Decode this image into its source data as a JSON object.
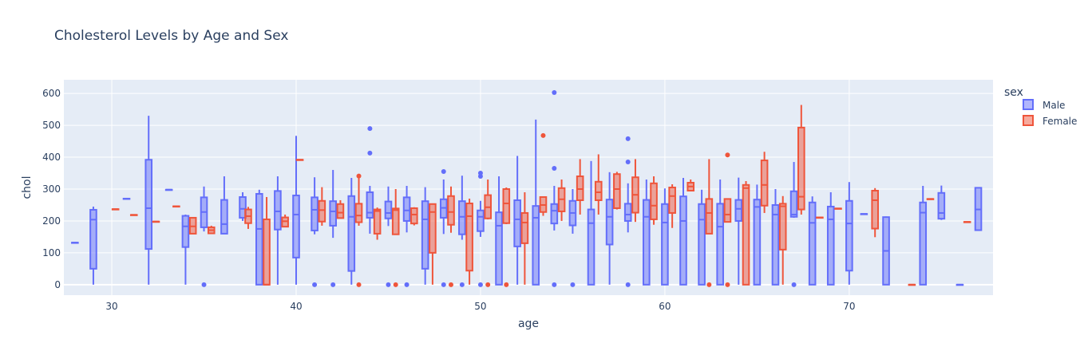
{
  "chart_data": {
    "type": "box",
    "title": "Cholesterol Levels by Age and Sex",
    "xlabel": "age",
    "ylabel": "chol",
    "xlim": [
      27.4,
      77.8
    ],
    "ylim": [
      -33,
      643
    ],
    "x_ticks": [
      30,
      40,
      50,
      60,
      70
    ],
    "y_ticks": [
      0,
      100,
      200,
      300,
      400,
      500,
      600
    ],
    "legend_title": "sex",
    "legend_position": "right",
    "grid": true,
    "series": [
      {
        "name": "Male",
        "color": "#636efa",
        "fill": "rgba(99,110,250,0.5)",
        "boxes": [
          {
            "x": 28,
            "min": 132,
            "q1": 132,
            "median": 132,
            "q3": 132,
            "max": 132,
            "outliers": []
          },
          {
            "x": 29,
            "min": 0,
            "q1": 50,
            "median": 204,
            "q3": 235,
            "max": 245,
            "outliers": []
          },
          {
            "x": 30.8,
            "min": 270,
            "q1": 270,
            "median": 270,
            "q3": 270,
            "max": 270,
            "outliers": []
          },
          {
            "x": 32,
            "min": 0,
            "q1": 112,
            "median": 240,
            "q3": 392,
            "max": 530,
            "outliers": []
          },
          {
            "x": 33.1,
            "min": 298,
            "q1": 298,
            "median": 298,
            "q3": 298,
            "max": 298,
            "outliers": []
          },
          {
            "x": 34,
            "min": 0,
            "q1": 118,
            "median": 183,
            "q3": 216,
            "max": 220,
            "outliers": []
          },
          {
            "x": 35,
            "min": 167,
            "q1": 180,
            "median": 228,
            "q3": 274,
            "max": 308,
            "outliers": [
              0
            ]
          },
          {
            "x": 36.1,
            "min": 160,
            "q1": 160,
            "median": 190,
            "q3": 266,
            "max": 340,
            "outliers": []
          },
          {
            "x": 37.1,
            "min": 200,
            "q1": 210,
            "median": 238,
            "q3": 275,
            "max": 290,
            "outliers": []
          },
          {
            "x": 38,
            "min": 0,
            "q1": 0,
            "median": 175,
            "q3": 285,
            "max": 298,
            "outliers": []
          },
          {
            "x": 39,
            "min": 0,
            "q1": 173,
            "median": 230,
            "q3": 294,
            "max": 340,
            "outliers": []
          },
          {
            "x": 40,
            "min": 0,
            "q1": 85,
            "median": 220,
            "q3": 280,
            "max": 467,
            "outliers": []
          },
          {
            "x": 41,
            "min": 158,
            "q1": 170,
            "median": 235,
            "q3": 274,
            "max": 337,
            "outliers": [
              0
            ]
          },
          {
            "x": 42,
            "min": 147,
            "q1": 185,
            "median": 230,
            "q3": 262,
            "max": 360,
            "outliers": [
              0
            ]
          },
          {
            "x": 43,
            "min": 0,
            "q1": 43,
            "median": 213,
            "q3": 278,
            "max": 335,
            "outliers": []
          },
          {
            "x": 44,
            "min": 160,
            "q1": 210,
            "median": 226,
            "q3": 290,
            "max": 310,
            "outliers": [
              413,
              490
            ]
          },
          {
            "x": 45,
            "min": 184,
            "q1": 208,
            "median": 225,
            "q3": 261,
            "max": 308,
            "outliers": [
              0
            ]
          },
          {
            "x": 46,
            "min": 164,
            "q1": 200,
            "median": 233,
            "q3": 274,
            "max": 310,
            "outliers": [
              0
            ]
          },
          {
            "x": 47,
            "min": 0,
            "q1": 50,
            "median": 205,
            "q3": 262,
            "max": 306,
            "outliers": []
          },
          {
            "x": 48,
            "min": 159,
            "q1": 210,
            "median": 241,
            "q3": 268,
            "max": 330,
            "outliers": [
              0,
              355
            ]
          },
          {
            "x": 49,
            "min": 141,
            "q1": 158,
            "median": 213,
            "q3": 262,
            "max": 342,
            "outliers": [
              0
            ]
          },
          {
            "x": 50,
            "min": 150,
            "q1": 168,
            "median": 213,
            "q3": 233,
            "max": 263,
            "outliers": [
              0,
              340,
              350
            ]
          },
          {
            "x": 51,
            "min": 0,
            "q1": 0,
            "median": 185,
            "q3": 227,
            "max": 340,
            "outliers": []
          },
          {
            "x": 52,
            "min": 0,
            "q1": 120,
            "median": 205,
            "q3": 265,
            "max": 404,
            "outliers": []
          },
          {
            "x": 53,
            "min": 0,
            "q1": 0,
            "median": 210,
            "q3": 247,
            "max": 518,
            "outliers": []
          },
          {
            "x": 54,
            "min": 170,
            "q1": 192,
            "median": 232,
            "q3": 253,
            "max": 310,
            "outliers": [
              0,
              365,
              603
            ]
          },
          {
            "x": 55,
            "min": 160,
            "q1": 186,
            "median": 225,
            "q3": 263,
            "max": 300,
            "outliers": [
              0
            ]
          },
          {
            "x": 56,
            "min": 0,
            "q1": 0,
            "median": 193,
            "q3": 236,
            "max": 388,
            "outliers": []
          },
          {
            "x": 57,
            "min": 0,
            "q1": 126,
            "median": 213,
            "q3": 267,
            "max": 353,
            "outliers": []
          },
          {
            "x": 58,
            "min": 164,
            "q1": 200,
            "median": 220,
            "q3": 254,
            "max": 318,
            "outliers": [
              0,
              385,
              458
            ]
          },
          {
            "x": 59,
            "min": 0,
            "q1": 0,
            "median": 213,
            "q3": 266,
            "max": 330,
            "outliers": []
          },
          {
            "x": 60,
            "min": 0,
            "q1": 0,
            "median": 195,
            "q3": 253,
            "max": 302,
            "outliers": []
          },
          {
            "x": 61,
            "min": 0,
            "q1": 0,
            "median": 200,
            "q3": 277,
            "max": 335,
            "outliers": []
          },
          {
            "x": 62,
            "min": 0,
            "q1": 0,
            "median": 204,
            "q3": 253,
            "max": 298,
            "outliers": []
          },
          {
            "x": 63,
            "min": 0,
            "q1": 0,
            "median": 182,
            "q3": 254,
            "max": 330,
            "outliers": []
          },
          {
            "x": 64,
            "min": 0,
            "q1": 200,
            "median": 238,
            "q3": 266,
            "max": 336,
            "outliers": []
          },
          {
            "x": 65,
            "min": 0,
            "q1": 0,
            "median": 244,
            "q3": 267,
            "max": 314,
            "outliers": []
          },
          {
            "x": 66,
            "min": 0,
            "q1": 0,
            "median": 220,
            "q3": 250,
            "max": 300,
            "outliers": []
          },
          {
            "x": 67,
            "min": 210,
            "q1": 213,
            "median": 220,
            "q3": 293,
            "max": 385,
            "outliers": [
              0
            ]
          },
          {
            "x": 68,
            "min": 0,
            "q1": 0,
            "median": 194,
            "q3": 258,
            "max": 277,
            "outliers": []
          },
          {
            "x": 69,
            "min": 0,
            "q1": 0,
            "median": 205,
            "q3": 245,
            "max": 290,
            "outliers": []
          },
          {
            "x": 70,
            "min": 0,
            "q1": 44,
            "median": 192,
            "q3": 263,
            "max": 322,
            "outliers": []
          },
          {
            "x": 70.8,
            "min": 222,
            "q1": 222,
            "median": 222,
            "q3": 222,
            "max": 222,
            "outliers": []
          },
          {
            "x": 72,
            "min": 0,
            "q1": 0,
            "median": 106,
            "q3": 212,
            "max": 214,
            "outliers": []
          },
          {
            "x": 74,
            "min": 0,
            "q1": 0,
            "median": 226,
            "q3": 258,
            "max": 310,
            "outliers": []
          },
          {
            "x": 75,
            "min": 203,
            "q1": 207,
            "median": 225,
            "q3": 288,
            "max": 311,
            "outliers": []
          },
          {
            "x": 76,
            "min": 0,
            "q1": 0,
            "median": 0,
            "q3": 0,
            "max": 0,
            "outliers": []
          },
          {
            "x": 77,
            "min": 171,
            "q1": 171,
            "median": 236,
            "q3": 304,
            "max": 304,
            "outliers": []
          }
        ]
      },
      {
        "name": "Female",
        "color": "#ef553b",
        "fill": "rgba(239,85,59,0.5)",
        "boxes": [
          {
            "x": 30.2,
            "min": 237,
            "q1": 237,
            "median": 237,
            "q3": 237,
            "max": 237,
            "outliers": []
          },
          {
            "x": 31.2,
            "min": 219,
            "q1": 219,
            "median": 219,
            "q3": 219,
            "max": 219,
            "outliers": []
          },
          {
            "x": 32.4,
            "min": 198,
            "q1": 198,
            "median": 198,
            "q3": 198,
            "max": 198,
            "outliers": []
          },
          {
            "x": 33.5,
            "min": 246,
            "q1": 246,
            "median": 246,
            "q3": 246,
            "max": 246,
            "outliers": []
          },
          {
            "x": 34.4,
            "min": 160,
            "q1": 160,
            "median": 183,
            "q3": 210,
            "max": 210,
            "outliers": []
          },
          {
            "x": 35.4,
            "min": 160,
            "q1": 161,
            "median": 171,
            "q3": 180,
            "max": 185,
            "outliers": []
          },
          {
            "x": 37.4,
            "min": 175,
            "q1": 193,
            "median": 215,
            "q3": 236,
            "max": 244,
            "outliers": []
          },
          {
            "x": 38.4,
            "min": 0,
            "q1": 0,
            "median": 0,
            "q3": 205,
            "max": 275,
            "outliers": []
          },
          {
            "x": 39.4,
            "min": 180,
            "q1": 182,
            "median": 199,
            "q3": 211,
            "max": 220,
            "outliers": []
          },
          {
            "x": 40.2,
            "min": 392,
            "q1": 392,
            "median": 392,
            "q3": 392,
            "max": 392,
            "outliers": []
          },
          {
            "x": 41.4,
            "min": 185,
            "q1": 198,
            "median": 234,
            "q3": 263,
            "max": 306,
            "outliers": []
          },
          {
            "x": 42.4,
            "min": 209,
            "q1": 209,
            "median": 226,
            "q3": 253,
            "max": 265,
            "outliers": []
          },
          {
            "x": 43.4,
            "min": 185,
            "q1": 196,
            "median": 217,
            "q3": 254,
            "max": 341,
            "outliers": [
              0,
              341
            ]
          },
          {
            "x": 44.4,
            "min": 141,
            "q1": 160,
            "median": 231,
            "q3": 236,
            "max": 242,
            "outliers": []
          },
          {
            "x": 45.4,
            "min": 158,
            "q1": 158,
            "median": 234,
            "q3": 239,
            "max": 300,
            "outliers": [
              0
            ]
          },
          {
            "x": 46.4,
            "min": 186,
            "q1": 192,
            "median": 220,
            "q3": 240,
            "max": 243,
            "outliers": []
          },
          {
            "x": 47.4,
            "min": 0,
            "q1": 100,
            "median": 228,
            "q3": 253,
            "max": 255,
            "outliers": []
          },
          {
            "x": 48.4,
            "min": 163,
            "q1": 188,
            "median": 228,
            "q3": 278,
            "max": 308,
            "outliers": [
              0
            ]
          },
          {
            "x": 49.4,
            "min": 0,
            "q1": 44,
            "median": 215,
            "q3": 255,
            "max": 270,
            "outliers": []
          },
          {
            "x": 50.4,
            "min": 205,
            "q1": 208,
            "median": 243,
            "q3": 281,
            "max": 330,
            "outliers": [
              0
            ]
          },
          {
            "x": 51.4,
            "min": 190,
            "q1": 193,
            "median": 255,
            "q3": 300,
            "max": 305,
            "outliers": [
              0
            ]
          },
          {
            "x": 52.4,
            "min": 0,
            "q1": 130,
            "median": 195,
            "q3": 225,
            "max": 290,
            "outliers": []
          },
          {
            "x": 53.4,
            "min": 216,
            "q1": 228,
            "median": 250,
            "q3": 275,
            "max": 275,
            "outliers": [
              468
            ]
          },
          {
            "x": 54.4,
            "min": 200,
            "q1": 230,
            "median": 268,
            "q3": 303,
            "max": 330,
            "outliers": []
          },
          {
            "x": 55.4,
            "min": 220,
            "q1": 265,
            "median": 300,
            "q3": 340,
            "max": 394,
            "outliers": []
          },
          {
            "x": 56.4,
            "min": 220,
            "q1": 265,
            "median": 290,
            "q3": 323,
            "max": 409,
            "outliers": []
          },
          {
            "x": 57.4,
            "min": 236,
            "q1": 240,
            "median": 300,
            "q3": 347,
            "max": 354,
            "outliers": []
          },
          {
            "x": 58.4,
            "min": 197,
            "q1": 226,
            "median": 282,
            "q3": 337,
            "max": 394,
            "outliers": []
          },
          {
            "x": 59.4,
            "min": 188,
            "q1": 205,
            "median": 248,
            "q3": 318,
            "max": 340,
            "outliers": []
          },
          {
            "x": 60.4,
            "min": 178,
            "q1": 225,
            "median": 278,
            "q3": 305,
            "max": 315,
            "outliers": []
          },
          {
            "x": 61.4,
            "min": 295,
            "q1": 295,
            "median": 308,
            "q3": 320,
            "max": 330,
            "outliers": []
          },
          {
            "x": 62.4,
            "min": 160,
            "q1": 160,
            "median": 225,
            "q3": 269,
            "max": 394,
            "outliers": [
              0
            ]
          },
          {
            "x": 63.4,
            "min": 197,
            "q1": 197,
            "median": 220,
            "q3": 269,
            "max": 269,
            "outliers": [
              0,
              407
            ]
          },
          {
            "x": 64.4,
            "min": 0,
            "q1": 0,
            "median": 303,
            "q3": 313,
            "max": 325,
            "outliers": []
          },
          {
            "x": 65.4,
            "min": 225,
            "q1": 248,
            "median": 313,
            "q3": 390,
            "max": 417,
            "outliers": []
          },
          {
            "x": 66.4,
            "min": 0,
            "q1": 110,
            "median": 246,
            "q3": 254,
            "max": 278,
            "outliers": []
          },
          {
            "x": 67.4,
            "min": 220,
            "q1": 236,
            "median": 276,
            "q3": 493,
            "max": 564,
            "outliers": []
          },
          {
            "x": 68.4,
            "min": 211,
            "q1": 211,
            "median": 211,
            "q3": 211,
            "max": 211,
            "outliers": []
          },
          {
            "x": 69.4,
            "min": 239,
            "q1": 239,
            "median": 239,
            "q3": 239,
            "max": 239,
            "outliers": []
          },
          {
            "x": 71.4,
            "min": 149,
            "q1": 176,
            "median": 265,
            "q3": 295,
            "max": 303,
            "outliers": []
          },
          {
            "x": 73.4,
            "min": 0,
            "q1": 0,
            "median": 0,
            "q3": 0,
            "max": 0,
            "outliers": []
          },
          {
            "x": 74.4,
            "min": 269,
            "q1": 269,
            "median": 269,
            "q3": 269,
            "max": 269,
            "outliers": []
          },
          {
            "x": 76.4,
            "min": 197,
            "q1": 197,
            "median": 197,
            "q3": 197,
            "max": 197,
            "outliers": []
          }
        ]
      }
    ]
  }
}
